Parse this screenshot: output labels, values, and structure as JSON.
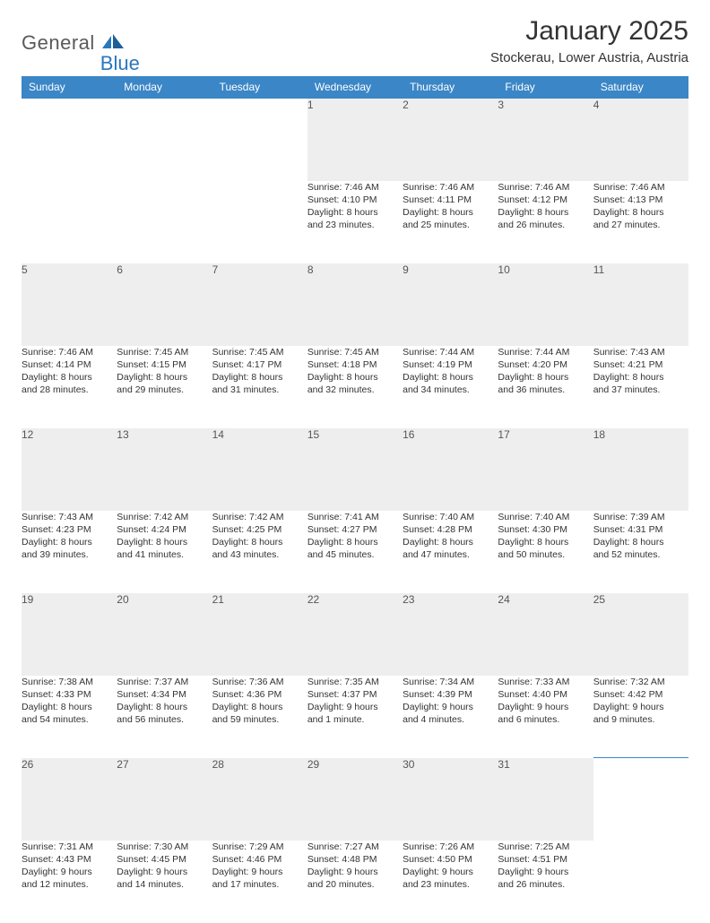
{
  "logo": {
    "word1": "General",
    "word2": "Blue"
  },
  "title": "January 2025",
  "location": "Stockerau, Lower Austria, Austria",
  "columns": [
    "Sunday",
    "Monday",
    "Tuesday",
    "Wednesday",
    "Thursday",
    "Friday",
    "Saturday"
  ],
  "colors": {
    "header_bg": "#3b86c6",
    "header_text": "#ffffff",
    "daynum_bg": "#eeeeee",
    "daynum_text": "#555555",
    "body_text": "#333333",
    "logo_gray": "#5a5a5a",
    "logo_blue": "#2a77bd",
    "row_border": "#3b86c6"
  },
  "fonts": {
    "title_size": 30,
    "location_size": 15,
    "header_size": 12,
    "daynum_size": 12,
    "cell_size": 10.5
  },
  "weeks": [
    [
      null,
      null,
      null,
      {
        "n": "1",
        "sr": "Sunrise: 7:46 AM",
        "ss": "Sunset: 4:10 PM",
        "d1": "Daylight: 8 hours",
        "d2": "and 23 minutes."
      },
      {
        "n": "2",
        "sr": "Sunrise: 7:46 AM",
        "ss": "Sunset: 4:11 PM",
        "d1": "Daylight: 8 hours",
        "d2": "and 25 minutes."
      },
      {
        "n": "3",
        "sr": "Sunrise: 7:46 AM",
        "ss": "Sunset: 4:12 PM",
        "d1": "Daylight: 8 hours",
        "d2": "and 26 minutes."
      },
      {
        "n": "4",
        "sr": "Sunrise: 7:46 AM",
        "ss": "Sunset: 4:13 PM",
        "d1": "Daylight: 8 hours",
        "d2": "and 27 minutes."
      }
    ],
    [
      {
        "n": "5",
        "sr": "Sunrise: 7:46 AM",
        "ss": "Sunset: 4:14 PM",
        "d1": "Daylight: 8 hours",
        "d2": "and 28 minutes."
      },
      {
        "n": "6",
        "sr": "Sunrise: 7:45 AM",
        "ss": "Sunset: 4:15 PM",
        "d1": "Daylight: 8 hours",
        "d2": "and 29 minutes."
      },
      {
        "n": "7",
        "sr": "Sunrise: 7:45 AM",
        "ss": "Sunset: 4:17 PM",
        "d1": "Daylight: 8 hours",
        "d2": "and 31 minutes."
      },
      {
        "n": "8",
        "sr": "Sunrise: 7:45 AM",
        "ss": "Sunset: 4:18 PM",
        "d1": "Daylight: 8 hours",
        "d2": "and 32 minutes."
      },
      {
        "n": "9",
        "sr": "Sunrise: 7:44 AM",
        "ss": "Sunset: 4:19 PM",
        "d1": "Daylight: 8 hours",
        "d2": "and 34 minutes."
      },
      {
        "n": "10",
        "sr": "Sunrise: 7:44 AM",
        "ss": "Sunset: 4:20 PM",
        "d1": "Daylight: 8 hours",
        "d2": "and 36 minutes."
      },
      {
        "n": "11",
        "sr": "Sunrise: 7:43 AM",
        "ss": "Sunset: 4:21 PM",
        "d1": "Daylight: 8 hours",
        "d2": "and 37 minutes."
      }
    ],
    [
      {
        "n": "12",
        "sr": "Sunrise: 7:43 AM",
        "ss": "Sunset: 4:23 PM",
        "d1": "Daylight: 8 hours",
        "d2": "and 39 minutes."
      },
      {
        "n": "13",
        "sr": "Sunrise: 7:42 AM",
        "ss": "Sunset: 4:24 PM",
        "d1": "Daylight: 8 hours",
        "d2": "and 41 minutes."
      },
      {
        "n": "14",
        "sr": "Sunrise: 7:42 AM",
        "ss": "Sunset: 4:25 PM",
        "d1": "Daylight: 8 hours",
        "d2": "and 43 minutes."
      },
      {
        "n": "15",
        "sr": "Sunrise: 7:41 AM",
        "ss": "Sunset: 4:27 PM",
        "d1": "Daylight: 8 hours",
        "d2": "and 45 minutes."
      },
      {
        "n": "16",
        "sr": "Sunrise: 7:40 AM",
        "ss": "Sunset: 4:28 PM",
        "d1": "Daylight: 8 hours",
        "d2": "and 47 minutes."
      },
      {
        "n": "17",
        "sr": "Sunrise: 7:40 AM",
        "ss": "Sunset: 4:30 PM",
        "d1": "Daylight: 8 hours",
        "d2": "and 50 minutes."
      },
      {
        "n": "18",
        "sr": "Sunrise: 7:39 AM",
        "ss": "Sunset: 4:31 PM",
        "d1": "Daylight: 8 hours",
        "d2": "and 52 minutes."
      }
    ],
    [
      {
        "n": "19",
        "sr": "Sunrise: 7:38 AM",
        "ss": "Sunset: 4:33 PM",
        "d1": "Daylight: 8 hours",
        "d2": "and 54 minutes."
      },
      {
        "n": "20",
        "sr": "Sunrise: 7:37 AM",
        "ss": "Sunset: 4:34 PM",
        "d1": "Daylight: 8 hours",
        "d2": "and 56 minutes."
      },
      {
        "n": "21",
        "sr": "Sunrise: 7:36 AM",
        "ss": "Sunset: 4:36 PM",
        "d1": "Daylight: 8 hours",
        "d2": "and 59 minutes."
      },
      {
        "n": "22",
        "sr": "Sunrise: 7:35 AM",
        "ss": "Sunset: 4:37 PM",
        "d1": "Daylight: 9 hours",
        "d2": "and 1 minute."
      },
      {
        "n": "23",
        "sr": "Sunrise: 7:34 AM",
        "ss": "Sunset: 4:39 PM",
        "d1": "Daylight: 9 hours",
        "d2": "and 4 minutes."
      },
      {
        "n": "24",
        "sr": "Sunrise: 7:33 AM",
        "ss": "Sunset: 4:40 PM",
        "d1": "Daylight: 9 hours",
        "d2": "and 6 minutes."
      },
      {
        "n": "25",
        "sr": "Sunrise: 7:32 AM",
        "ss": "Sunset: 4:42 PM",
        "d1": "Daylight: 9 hours",
        "d2": "and 9 minutes."
      }
    ],
    [
      {
        "n": "26",
        "sr": "Sunrise: 7:31 AM",
        "ss": "Sunset: 4:43 PM",
        "d1": "Daylight: 9 hours",
        "d2": "and 12 minutes."
      },
      {
        "n": "27",
        "sr": "Sunrise: 7:30 AM",
        "ss": "Sunset: 4:45 PM",
        "d1": "Daylight: 9 hours",
        "d2": "and 14 minutes."
      },
      {
        "n": "28",
        "sr": "Sunrise: 7:29 AM",
        "ss": "Sunset: 4:46 PM",
        "d1": "Daylight: 9 hours",
        "d2": "and 17 minutes."
      },
      {
        "n": "29",
        "sr": "Sunrise: 7:27 AM",
        "ss": "Sunset: 4:48 PM",
        "d1": "Daylight: 9 hours",
        "d2": "and 20 minutes."
      },
      {
        "n": "30",
        "sr": "Sunrise: 7:26 AM",
        "ss": "Sunset: 4:50 PM",
        "d1": "Daylight: 9 hours",
        "d2": "and 23 minutes."
      },
      {
        "n": "31",
        "sr": "Sunrise: 7:25 AM",
        "ss": "Sunset: 4:51 PM",
        "d1": "Daylight: 9 hours",
        "d2": "and 26 minutes."
      },
      null
    ]
  ]
}
